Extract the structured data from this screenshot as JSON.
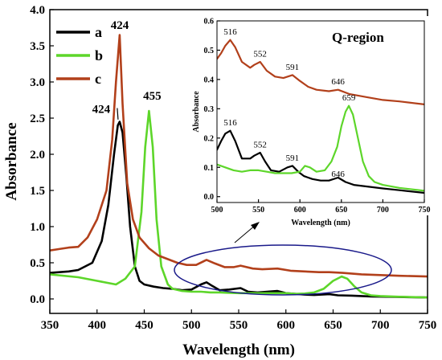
{
  "chart_data": [
    {
      "type": "line",
      "xlabel": "Wavelength (nm)",
      "ylabel": "Absorbance",
      "xlim": [
        350,
        750
      ],
      "ylim": [
        -0.2,
        4.0
      ],
      "x_ticks": [
        "350",
        "400",
        "450",
        "500",
        "550",
        "600",
        "650",
        "700",
        "750"
      ],
      "y_ticks": [
        "0.0",
        "0.5",
        "1.0",
        "1.5",
        "2.0",
        "2.5",
        "3.0",
        "3.5",
        "4.0"
      ],
      "grid": false,
      "legend_position": "top-left",
      "series": [
        {
          "name": "a",
          "color": "#000000",
          "points": [
            [
              350,
              0.36
            ],
            [
              370,
              0.38
            ],
            [
              380,
              0.4
            ],
            [
              395,
              0.5
            ],
            [
              405,
              0.8
            ],
            [
              412,
              1.3
            ],
            [
              418,
              2.0
            ],
            [
              422,
              2.4
            ],
            [
              424,
              2.45
            ],
            [
              427,
              2.3
            ],
            [
              431,
              1.7
            ],
            [
              435,
              1.0
            ],
            [
              440,
              0.45
            ],
            [
              445,
              0.25
            ],
            [
              450,
              0.2
            ],
            [
              460,
              0.17
            ],
            [
              470,
              0.15
            ],
            [
              480,
              0.14
            ],
            [
              490,
              0.12
            ],
            [
              500,
              0.13
            ],
            [
              510,
              0.2
            ],
            [
              516,
              0.23
            ],
            [
              522,
              0.18
            ],
            [
              530,
              0.12
            ],
            [
              540,
              0.13
            ],
            [
              552,
              0.15
            ],
            [
              560,
              0.1
            ],
            [
              570,
              0.09
            ],
            [
              580,
              0.1
            ],
            [
              591,
              0.11
            ],
            [
              600,
              0.08
            ],
            [
              610,
              0.07
            ],
            [
              620,
              0.06
            ],
            [
              630,
              0.055
            ],
            [
              646,
              0.065
            ],
            [
              655,
              0.05
            ],
            [
              670,
              0.045
            ],
            [
              690,
              0.035
            ],
            [
              710,
              0.03
            ],
            [
              730,
              0.025
            ],
            [
              750,
              0.02
            ]
          ]
        },
        {
          "name": "b",
          "color": "#5dd62a",
          "points": [
            [
              350,
              0.34
            ],
            [
              380,
              0.3
            ],
            [
              400,
              0.25
            ],
            [
              420,
              0.2
            ],
            [
              430,
              0.28
            ],
            [
              440,
              0.45
            ],
            [
              447,
              1.2
            ],
            [
              451,
              2.1
            ],
            [
              455,
              2.6
            ],
            [
              459,
              2.1
            ],
            [
              463,
              1.1
            ],
            [
              468,
              0.45
            ],
            [
              475,
              0.2
            ],
            [
              480,
              0.14
            ],
            [
              490,
              0.11
            ],
            [
              500,
              0.1
            ],
            [
              510,
              0.1
            ],
            [
              520,
              0.09
            ],
            [
              530,
              0.09
            ],
            [
              540,
              0.085
            ],
            [
              550,
              0.08
            ],
            [
              560,
              0.08
            ],
            [
              570,
              0.08
            ],
            [
              580,
              0.08
            ],
            [
              590,
              0.08
            ],
            [
              600,
              0.08
            ],
            [
              610,
              0.07
            ],
            [
              620,
              0.075
            ],
            [
              630,
              0.09
            ],
            [
              640,
              0.14
            ],
            [
              650,
              0.25
            ],
            [
              659,
              0.31
            ],
            [
              665,
              0.28
            ],
            [
              672,
              0.18
            ],
            [
              680,
              0.09
            ],
            [
              690,
              0.05
            ],
            [
              700,
              0.04
            ],
            [
              720,
              0.03
            ],
            [
              750,
              0.02
            ]
          ]
        },
        {
          "name": "c",
          "color": "#b2401b",
          "points": [
            [
              350,
              0.67
            ],
            [
              360,
              0.69
            ],
            [
              370,
              0.71
            ],
            [
              380,
              0.72
            ],
            [
              390,
              0.85
            ],
            [
              400,
              1.1
            ],
            [
              410,
              1.5
            ],
            [
              416,
              2.2
            ],
            [
              420,
              3.0
            ],
            [
              424,
              3.65
            ],
            [
              427,
              2.7
            ],
            [
              432,
              1.6
            ],
            [
              438,
              1.1
            ],
            [
              445,
              0.85
            ],
            [
              455,
              0.7
            ],
            [
              465,
              0.6
            ],
            [
              475,
              0.55
            ],
            [
              485,
              0.5
            ],
            [
              495,
              0.47
            ],
            [
              505,
              0.47
            ],
            [
              516,
              0.54
            ],
            [
              525,
              0.49
            ],
            [
              535,
              0.44
            ],
            [
              545,
              0.44
            ],
            [
              552,
              0.46
            ],
            [
              565,
              0.42
            ],
            [
              575,
              0.41
            ],
            [
              591,
              0.42
            ],
            [
              605,
              0.39
            ],
            [
              620,
              0.38
            ],
            [
              635,
              0.37
            ],
            [
              646,
              0.37
            ],
            [
              660,
              0.36
            ],
            [
              680,
              0.34
            ],
            [
              700,
              0.33
            ],
            [
              720,
              0.32
            ],
            [
              750,
              0.31
            ]
          ]
        }
      ],
      "annotations": [
        {
          "text": "424",
          "x": 424,
          "y": 3.7
        },
        {
          "text": "424",
          "x": 418,
          "y": 2.55
        },
        {
          "text": "455",
          "x": 455,
          "y": 2.72
        }
      ]
    },
    {
      "type": "line",
      "title": "Q-region",
      "xlabel": "Wavelength (nm)",
      "ylabel": "Absorbance",
      "xlim": [
        500,
        750
      ],
      "ylim": [
        -0.02,
        0.6
      ],
      "x_ticks": [
        "500",
        "550",
        "600",
        "650",
        "700",
        "750"
      ],
      "y_ticks": [
        "0.0",
        "0.1",
        "0.2",
        "0.3",
        "0.4",
        "0.5",
        "0.6"
      ],
      "series": [
        {
          "name": "a",
          "color": "#000000",
          "points": [
            [
              500,
              0.16
            ],
            [
              505,
              0.19
            ],
            [
              510,
              0.215
            ],
            [
              516,
              0.225
            ],
            [
              522,
              0.19
            ],
            [
              530,
              0.13
            ],
            [
              540,
              0.13
            ],
            [
              545,
              0.14
            ],
            [
              552,
              0.15
            ],
            [
              558,
              0.12
            ],
            [
              565,
              0.09
            ],
            [
              575,
              0.085
            ],
            [
              585,
              0.1
            ],
            [
              591,
              0.105
            ],
            [
              598,
              0.085
            ],
            [
              605,
              0.07
            ],
            [
              615,
              0.06
            ],
            [
              625,
              0.055
            ],
            [
              635,
              0.055
            ],
            [
              646,
              0.065
            ],
            [
              655,
              0.05
            ],
            [
              665,
              0.04
            ],
            [
              680,
              0.035
            ],
            [
              700,
              0.028
            ],
            [
              720,
              0.022
            ],
            [
              750,
              0.013
            ]
          ]
        },
        {
          "name": "b",
          "color": "#5dd62a",
          "points": [
            [
              500,
              0.11
            ],
            [
              510,
              0.1
            ],
            [
              520,
              0.09
            ],
            [
              530,
              0.085
            ],
            [
              540,
              0.09
            ],
            [
              550,
              0.09
            ],
            [
              560,
              0.085
            ],
            [
              570,
              0.08
            ],
            [
              580,
              0.08
            ],
            [
              590,
              0.08
            ],
            [
              600,
              0.085
            ],
            [
              606,
              0.105
            ],
            [
              612,
              0.1
            ],
            [
              620,
              0.085
            ],
            [
              630,
              0.09
            ],
            [
              638,
              0.12
            ],
            [
              645,
              0.17
            ],
            [
              650,
              0.24
            ],
            [
              655,
              0.29
            ],
            [
              659,
              0.31
            ],
            [
              664,
              0.28
            ],
            [
              670,
              0.2
            ],
            [
              676,
              0.12
            ],
            [
              683,
              0.07
            ],
            [
              690,
              0.05
            ],
            [
              700,
              0.04
            ],
            [
              720,
              0.03
            ],
            [
              750,
              0.02
            ]
          ]
        },
        {
          "name": "c",
          "color": "#b2401b",
          "points": [
            [
              500,
              0.47
            ],
            [
              505,
              0.49
            ],
            [
              510,
              0.515
            ],
            [
              516,
              0.535
            ],
            [
              522,
              0.51
            ],
            [
              530,
              0.46
            ],
            [
              540,
              0.44
            ],
            [
              545,
              0.45
            ],
            [
              552,
              0.46
            ],
            [
              560,
              0.43
            ],
            [
              570,
              0.41
            ],
            [
              580,
              0.405
            ],
            [
              591,
              0.415
            ],
            [
              600,
              0.395
            ],
            [
              610,
              0.375
            ],
            [
              620,
              0.365
            ],
            [
              635,
              0.36
            ],
            [
              646,
              0.365
            ],
            [
              660,
              0.35
            ],
            [
              680,
              0.34
            ],
            [
              700,
              0.33
            ],
            [
              720,
              0.325
            ],
            [
              750,
              0.315
            ]
          ]
        }
      ],
      "peak_labels": [
        {
          "text": "516",
          "x": 516,
          "y": 0.545
        },
        {
          "text": "552",
          "x": 552,
          "y": 0.47
        },
        {
          "text": "591",
          "x": 591,
          "y": 0.425
        },
        {
          "text": "646",
          "x": 646,
          "y": 0.375
        },
        {
          "text": "659",
          "x": 659,
          "y": 0.32
        },
        {
          "text": "516",
          "x": 516,
          "y": 0.235
        },
        {
          "text": "552",
          "x": 552,
          "y": 0.16
        },
        {
          "text": "591",
          "x": 591,
          "y": 0.115
        },
        {
          "text": "646",
          "x": 646,
          "y": 0.06
        }
      ]
    }
  ]
}
